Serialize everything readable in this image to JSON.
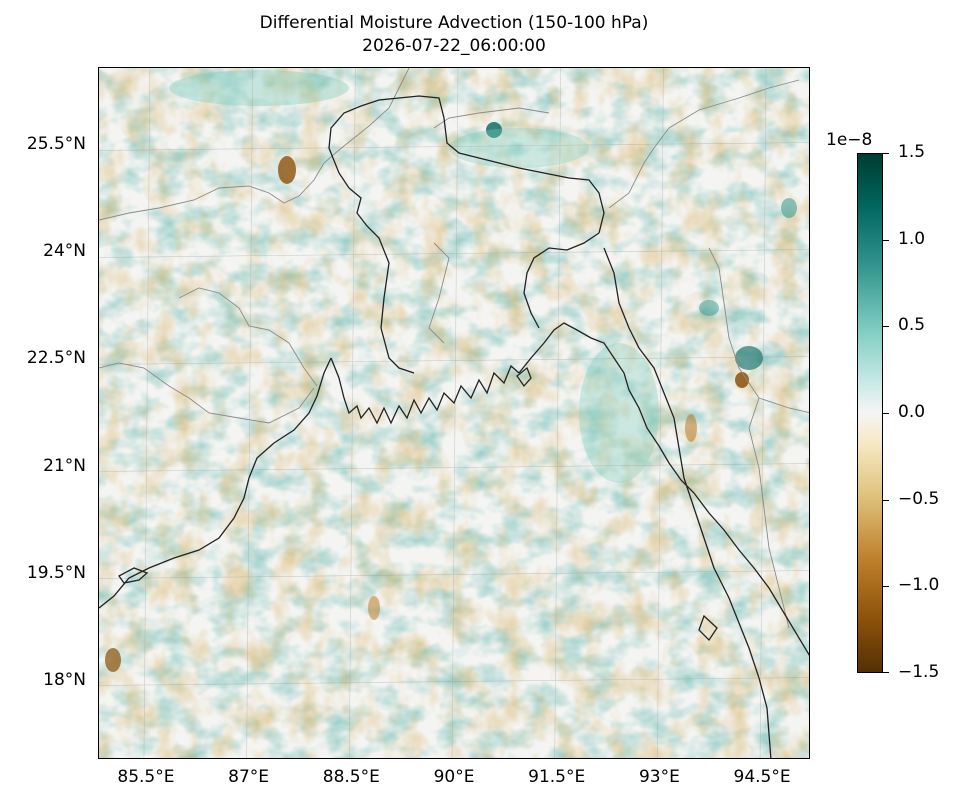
{
  "title": {
    "line1": "Differential Moisture Advection (150-100 hPa)",
    "line2": "2026-07-22_06:00:00"
  },
  "map": {
    "region": "Bangladesh and surrounding Bay of Bengal",
    "lon_range": [
      84.8,
      95.2
    ],
    "lat_range": [
      16.9,
      26.6
    ],
    "lat_ticks": [
      {
        "value": 25.5,
        "label": "25.5°N"
      },
      {
        "value": 24,
        "label": "24°N"
      },
      {
        "value": 22.5,
        "label": "22.5°N"
      },
      {
        "value": 21,
        "label": "21°N"
      },
      {
        "value": 19.5,
        "label": "19.5°N"
      },
      {
        "value": 18,
        "label": "18°N"
      }
    ],
    "lon_ticks": [
      {
        "value": 85.5,
        "label": "85.5°E"
      },
      {
        "value": 87,
        "label": "87°E"
      },
      {
        "value": 88.5,
        "label": "88.5°E"
      },
      {
        "value": 90,
        "label": "90°E"
      },
      {
        "value": 91.5,
        "label": "91.5°E"
      },
      {
        "value": 93,
        "label": "93°E"
      },
      {
        "value": 94.5,
        "label": "94.5°E"
      }
    ],
    "gridlines": true,
    "coastline_color": "#222222",
    "border_color": "#888888"
  },
  "colorbar": {
    "colormap": "BrBG",
    "vmin": -1.5,
    "vmax": 1.5,
    "exponent_label": "1e−8",
    "ticks": [
      {
        "value": 1.5,
        "label": "1.5"
      },
      {
        "value": 1.0,
        "label": "1.0"
      },
      {
        "value": 0.5,
        "label": "0.5"
      },
      {
        "value": 0.0,
        "label": "0.0"
      },
      {
        "value": -0.5,
        "label": "−0.5"
      },
      {
        "value": -1.0,
        "label": "−1.0"
      },
      {
        "value": -1.5,
        "label": "−1.5"
      }
    ]
  }
}
